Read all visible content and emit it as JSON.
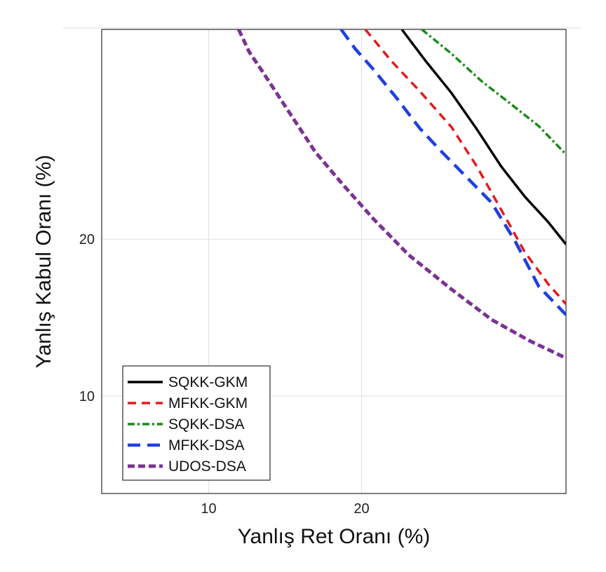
{
  "chart_data": {
    "type": "line",
    "title": "",
    "xlabel": "Yanlış Ret Oranı (%)",
    "ylabel": "Yanlış Kabul Oranı (%)",
    "xscale": "normal-deviate",
    "yscale": "normal-deviate",
    "xlim": [
      5.6,
      40.0
    ],
    "ylim": [
      6.0,
      40.0
    ],
    "xticks": [
      10,
      20
    ],
    "xtick_labels": [
      "10",
      "20"
    ],
    "yticks": [
      10,
      20
    ],
    "ytick_labels": [
      "10",
      "20"
    ],
    "grid": true,
    "legend_position": "bottom-left",
    "series": [
      {
        "name": "SQKK-GKM",
        "color": "#000000",
        "dash": "solid",
        "x": [
          23.4,
          25.5,
          28.0,
          30.5,
          33.0,
          35.5,
          38.0,
          40.0
        ],
        "y": [
          40.0,
          36.7,
          33.3,
          29.7,
          26.2,
          23.5,
          21.4,
          19.6
        ]
      },
      {
        "name": "MFKK-GKM",
        "color": "#e31a1c",
        "dash": "dashed",
        "x": [
          20.3,
          22.5,
          25.0,
          28.0,
          30.5,
          33.0,
          35.5,
          38.0,
          40.0
        ],
        "y": [
          40.0,
          36.6,
          33.5,
          29.9,
          26.2,
          22.4,
          19.0,
          16.7,
          15.3
        ]
      },
      {
        "name": "SQKK-DSA",
        "color": "#1a8a1a",
        "dash": "dot-dash",
        "x": [
          25.2,
          28.0,
          31.0,
          34.0,
          37.0,
          40.0
        ],
        "y": [
          40.0,
          37.4,
          34.5,
          32.2,
          30.0,
          27.3
        ]
      },
      {
        "name": "MFKK-DSA",
        "color": "#1f3fe0",
        "dash": "long-dash",
        "x": [
          18.4,
          19.5,
          21.0,
          23.0,
          25.0,
          27.0,
          29.5,
          32.0,
          34.5,
          37.0,
          40.0
        ],
        "y": [
          40.0,
          37.9,
          35.7,
          32.7,
          29.8,
          27.6,
          25.2,
          23.0,
          19.8,
          16.5,
          14.6
        ]
      },
      {
        "name": "UDOS-DSA",
        "color": "#7b3294",
        "dash": "heavy-dash",
        "x": [
          11.6,
          12.2,
          13.0,
          14.5,
          16.5,
          18.5,
          21.0,
          24.0,
          28.0,
          32.0,
          36.0,
          40.0
        ],
        "y": [
          40.0,
          37.6,
          35.5,
          31.8,
          27.5,
          24.6,
          21.6,
          18.8,
          16.3,
          14.3,
          13.0,
          12.0
        ]
      }
    ]
  }
}
